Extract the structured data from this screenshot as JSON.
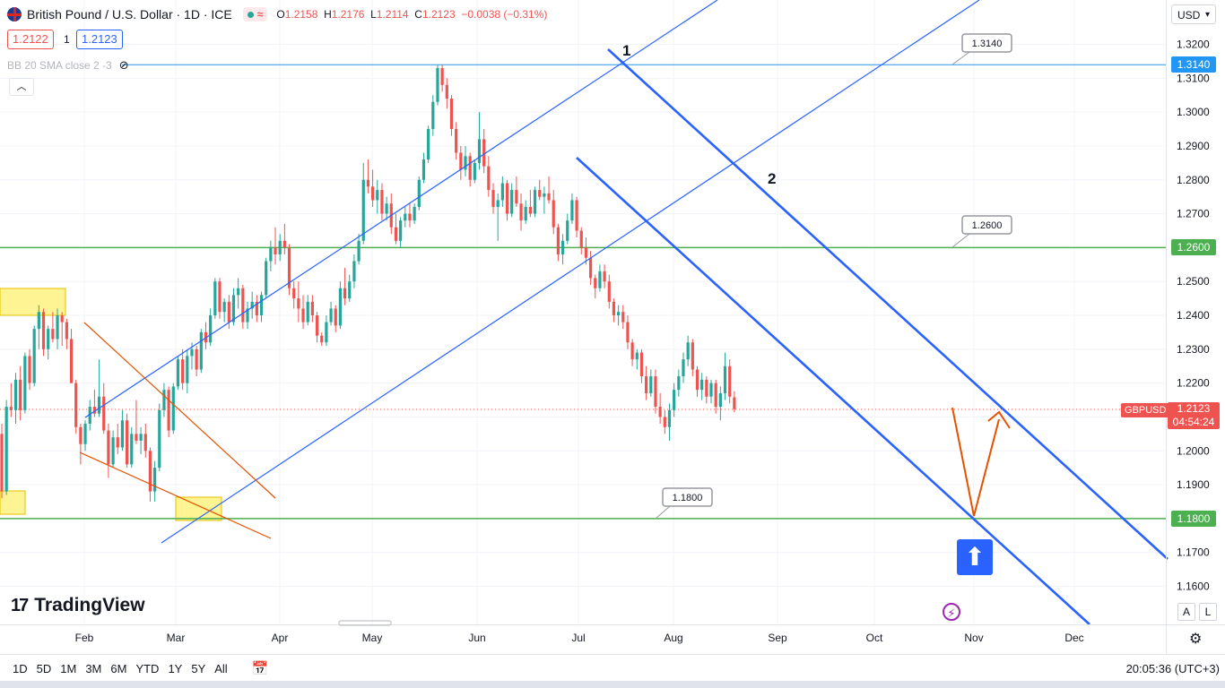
{
  "header": {
    "symbol_title": "British Pound / U.S. Dollar · 1D · ICE",
    "o_label": "O",
    "o_value": "1.2158",
    "h_label": "H",
    "h_value": "1.2176",
    "l_label": "L",
    "l_value": "1.2114",
    "c_label": "C",
    "c_value": "1.2123",
    "change": "−0.0038 (−0.31%)",
    "bid": "1.2122",
    "spread": "1",
    "ask": "1.2123",
    "indicator": "BB 20 SMA close 2 -3"
  },
  "currency": "USD",
  "logo": "TradingView",
  "ranges": [
    "1D",
    "5D",
    "1M",
    "3M",
    "6M",
    "YTD",
    "1Y",
    "5Y",
    "All"
  ],
  "clock": "20:05:36 (UTC+3)",
  "scale_buttons": [
    "A",
    "L"
  ],
  "colors": {
    "up": "#26a69a",
    "down": "#ef5350",
    "channel": "#2962ff",
    "level": "#4caf50",
    "wedge": "#e65100",
    "highlight": "#ffeb3b",
    "top_level": "#2196f3"
  },
  "chart_data": {
    "type": "candlestick",
    "instrument": "GBPUSD",
    "ylim": [
      1.155,
      1.327
    ],
    "y_ticks": [
      "1.3200",
      "1.3100",
      "1.3000",
      "1.2900",
      "1.2800",
      "1.2700",
      "1.2600",
      "1.2500",
      "1.2400",
      "1.2300",
      "1.2200",
      "1.2100",
      "1.2000",
      "1.1900",
      "1.1800",
      "1.1700",
      "1.1600"
    ],
    "x_ticks": [
      "Feb",
      "Mar",
      "Apr",
      "May",
      "Jun",
      "Jul",
      "Aug",
      "Sep",
      "Oct",
      "Nov",
      "Dec"
    ],
    "last_price": "1.2123",
    "countdown": "04:54:24",
    "levels": [
      {
        "value": 1.314,
        "label": "1.3140"
      },
      {
        "value": 1.26,
        "label": "1.2600"
      },
      {
        "value": 1.18,
        "label": "1.1800"
      }
    ],
    "wave_labels": [
      "1",
      "2"
    ],
    "candles": [
      [
        1.205,
        1.208,
        1.186,
        1.188
      ],
      [
        1.188,
        1.215,
        1.187,
        1.213
      ],
      [
        1.213,
        1.22,
        1.21,
        1.212
      ],
      [
        1.212,
        1.223,
        1.208,
        1.221
      ],
      [
        1.221,
        1.225,
        1.209,
        1.212
      ],
      [
        1.212,
        1.229,
        1.211,
        1.228
      ],
      [
        1.228,
        1.23,
        1.218,
        1.22
      ],
      [
        1.22,
        1.237,
        1.219,
        1.236
      ],
      [
        1.236,
        1.243,
        1.23,
        1.241
      ],
      [
        1.241,
        1.242,
        1.228,
        1.23
      ],
      [
        1.23,
        1.237,
        1.227,
        1.236
      ],
      [
        1.236,
        1.241,
        1.232,
        1.233
      ],
      [
        1.233,
        1.242,
        1.23,
        1.24
      ],
      [
        1.24,
        1.241,
        1.231,
        1.238
      ],
      [
        1.238,
        1.239,
        1.23,
        1.233
      ],
      [
        1.233,
        1.236,
        1.22,
        1.22
      ],
      [
        1.22,
        1.221,
        1.205,
        1.207
      ],
      [
        1.207,
        1.208,
        1.196,
        1.202
      ],
      [
        1.202,
        1.209,
        1.2,
        1.208
      ],
      [
        1.208,
        1.215,
        1.206,
        1.213
      ],
      [
        1.213,
        1.218,
        1.21,
        1.211
      ],
      [
        1.211,
        1.227,
        1.21,
        1.216
      ],
      [
        1.216,
        1.22,
        1.205,
        1.206
      ],
      [
        1.206,
        1.208,
        1.192,
        1.196
      ],
      [
        1.196,
        1.206,
        1.195,
        1.204
      ],
      [
        1.204,
        1.208,
        1.199,
        1.201
      ],
      [
        1.201,
        1.212,
        1.2,
        1.209
      ],
      [
        1.209,
        1.211,
        1.195,
        1.196
      ],
      [
        1.196,
        1.207,
        1.195,
        1.205
      ],
      [
        1.205,
        1.215,
        1.202,
        1.203
      ],
      [
        1.203,
        1.207,
        1.199,
        1.205
      ],
      [
        1.205,
        1.208,
        1.198,
        1.2
      ],
      [
        1.2,
        1.201,
        1.185,
        1.188
      ],
      [
        1.188,
        1.197,
        1.185,
        1.195
      ],
      [
        1.195,
        1.214,
        1.194,
        1.212
      ],
      [
        1.212,
        1.22,
        1.21,
        1.218
      ],
      [
        1.218,
        1.219,
        1.204,
        1.206
      ],
      [
        1.206,
        1.22,
        1.205,
        1.219
      ],
      [
        1.219,
        1.228,
        1.218,
        1.227
      ],
      [
        1.227,
        1.23,
        1.218,
        1.22
      ],
      [
        1.22,
        1.23,
        1.217,
        1.228
      ],
      [
        1.228,
        1.232,
        1.224,
        1.23
      ],
      [
        1.23,
        1.231,
        1.222,
        1.224
      ],
      [
        1.224,
        1.236,
        1.223,
        1.235
      ],
      [
        1.235,
        1.238,
        1.23,
        1.232
      ],
      [
        1.232,
        1.242,
        1.231,
        1.24
      ],
      [
        1.24,
        1.251,
        1.239,
        1.25
      ],
      [
        1.25,
        1.251,
        1.239,
        1.241
      ],
      [
        1.241,
        1.245,
        1.238,
        1.244
      ],
      [
        1.244,
        1.246,
        1.236,
        1.238
      ],
      [
        1.238,
        1.248,
        1.237,
        1.246
      ],
      [
        1.246,
        1.251,
        1.242,
        1.248
      ],
      [
        1.248,
        1.249,
        1.236,
        1.238
      ],
      [
        1.238,
        1.244,
        1.236,
        1.242
      ],
      [
        1.242,
        1.247,
        1.239,
        1.244
      ],
      [
        1.244,
        1.246,
        1.238,
        1.24
      ],
      [
        1.24,
        1.247,
        1.238,
        1.246
      ],
      [
        1.246,
        1.257,
        1.245,
        1.256
      ],
      [
        1.256,
        1.262,
        1.253,
        1.26
      ],
      [
        1.26,
        1.266,
        1.255,
        1.258
      ],
      [
        1.258,
        1.264,
        1.256,
        1.262
      ],
      [
        1.262,
        1.267,
        1.258,
        1.26
      ],
      [
        1.26,
        1.261,
        1.246,
        1.248
      ],
      [
        1.248,
        1.25,
        1.242,
        1.245
      ],
      [
        1.245,
        1.25,
        1.238,
        1.242
      ],
      [
        1.242,
        1.246,
        1.236,
        1.238
      ],
      [
        1.238,
        1.246,
        1.237,
        1.244
      ],
      [
        1.244,
        1.246,
        1.238,
        1.24
      ],
      [
        1.24,
        1.241,
        1.232,
        1.234
      ],
      [
        1.234,
        1.235,
        1.231,
        1.232
      ],
      [
        1.232,
        1.24,
        1.231,
        1.238
      ],
      [
        1.238,
        1.244,
        1.237,
        1.242
      ],
      [
        1.242,
        1.243,
        1.235,
        1.237
      ],
      [
        1.237,
        1.25,
        1.236,
        1.248
      ],
      [
        1.248,
        1.254,
        1.243,
        1.245
      ],
      [
        1.245,
        1.252,
        1.244,
        1.25
      ],
      [
        1.25,
        1.258,
        1.248,
        1.256
      ],
      [
        1.256,
        1.264,
        1.255,
        1.262
      ],
      [
        1.262,
        1.285,
        1.261,
        1.28
      ],
      [
        1.28,
        1.286,
        1.276,
        1.278
      ],
      [
        1.278,
        1.283,
        1.272,
        1.274
      ],
      [
        1.274,
        1.28,
        1.27,
        1.277
      ],
      [
        1.277,
        1.279,
        1.268,
        1.27
      ],
      [
        1.27,
        1.275,
        1.268,
        1.273
      ],
      [
        1.273,
        1.276,
        1.264,
        1.266
      ],
      [
        1.266,
        1.27,
        1.261,
        1.262
      ],
      [
        1.262,
        1.269,
        1.26,
        1.268
      ],
      [
        1.268,
        1.272,
        1.266,
        1.27
      ],
      [
        1.27,
        1.273,
        1.266,
        1.268
      ],
      [
        1.268,
        1.273,
        1.267,
        1.272
      ],
      [
        1.272,
        1.281,
        1.271,
        1.28
      ],
      [
        1.28,
        1.288,
        1.279,
        1.286
      ],
      [
        1.286,
        1.296,
        1.285,
        1.295
      ],
      [
        1.295,
        1.305,
        1.293,
        1.303
      ],
      [
        1.303,
        1.314,
        1.302,
        1.313
      ],
      [
        1.313,
        1.314,
        1.306,
        1.308
      ],
      [
        1.308,
        1.31,
        1.301,
        1.304
      ],
      [
        1.304,
        1.305,
        1.293,
        1.295
      ],
      [
        1.295,
        1.297,
        1.286,
        1.288
      ],
      [
        1.288,
        1.29,
        1.28,
        1.283
      ],
      [
        1.283,
        1.29,
        1.281,
        1.287
      ],
      [
        1.287,
        1.288,
        1.278,
        1.28
      ],
      [
        1.28,
        1.286,
        1.279,
        1.285
      ],
      [
        1.285,
        1.3,
        1.283,
        1.292
      ],
      [
        1.292,
        1.295,
        1.282,
        1.284
      ],
      [
        1.284,
        1.287,
        1.275,
        1.277
      ],
      [
        1.277,
        1.279,
        1.27,
        1.272
      ],
      [
        1.272,
        1.276,
        1.262,
        1.274
      ],
      [
        1.274,
        1.281,
        1.272,
        1.279
      ],
      [
        1.279,
        1.28,
        1.268,
        1.27
      ],
      [
        1.27,
        1.279,
        1.269,
        1.277
      ],
      [
        1.277,
        1.281,
        1.272,
        1.273
      ],
      [
        1.273,
        1.276,
        1.265,
        1.268
      ],
      [
        1.268,
        1.274,
        1.267,
        1.272
      ],
      [
        1.272,
        1.277,
        1.269,
        1.27
      ],
      [
        1.27,
        1.278,
        1.269,
        1.277
      ],
      [
        1.277,
        1.28,
        1.274,
        1.275
      ],
      [
        1.275,
        1.278,
        1.27,
        1.276
      ],
      [
        1.276,
        1.281,
        1.273,
        1.274
      ],
      [
        1.274,
        1.277,
        1.264,
        1.266
      ],
      [
        1.266,
        1.267,
        1.256,
        1.258
      ],
      [
        1.258,
        1.264,
        1.255,
        1.262
      ],
      [
        1.262,
        1.27,
        1.261,
        1.268
      ],
      [
        1.268,
        1.276,
        1.267,
        1.274
      ],
      [
        1.274,
        1.275,
        1.263,
        1.265
      ],
      [
        1.265,
        1.266,
        1.258,
        1.26
      ],
      [
        1.26,
        1.263,
        1.255,
        1.257
      ],
      [
        1.257,
        1.259,
        1.249,
        1.251
      ],
      [
        1.251,
        1.252,
        1.245,
        1.248
      ],
      [
        1.248,
        1.255,
        1.247,
        1.253
      ],
      [
        1.253,
        1.255,
        1.248,
        1.25
      ],
      [
        1.25,
        1.252,
        1.242,
        1.244
      ],
      [
        1.244,
        1.245,
        1.238,
        1.24
      ],
      [
        1.24,
        1.243,
        1.237,
        1.241
      ],
      [
        1.241,
        1.243,
        1.236,
        1.238
      ],
      [
        1.238,
        1.24,
        1.23,
        1.232
      ],
      [
        1.232,
        1.233,
        1.225,
        1.227
      ],
      [
        1.227,
        1.23,
        1.224,
        1.229
      ],
      [
        1.229,
        1.23,
        1.22,
        1.222
      ],
      [
        1.222,
        1.225,
        1.215,
        1.217
      ],
      [
        1.217,
        1.224,
        1.216,
        1.222
      ],
      [
        1.222,
        1.224,
        1.211,
        1.213
      ],
      [
        1.213,
        1.217,
        1.208,
        1.21
      ],
      [
        1.21,
        1.212,
        1.205,
        1.207
      ],
      [
        1.207,
        1.214,
        1.203,
        1.212
      ],
      [
        1.212,
        1.22,
        1.21,
        1.218
      ],
      [
        1.218,
        1.224,
        1.216,
        1.222
      ],
      [
        1.222,
        1.229,
        1.22,
        1.227
      ],
      [
        1.227,
        1.234,
        1.225,
        1.232
      ],
      [
        1.232,
        1.233,
        1.222,
        1.224
      ],
      [
        1.224,
        1.225,
        1.216,
        1.218
      ],
      [
        1.218,
        1.223,
        1.215,
        1.221
      ],
      [
        1.221,
        1.222,
        1.214,
        1.216
      ],
      [
        1.216,
        1.221,
        1.214,
        1.22
      ],
      [
        1.22,
        1.221,
        1.211,
        1.213
      ],
      [
        1.213,
        1.219,
        1.209,
        1.217
      ],
      [
        1.217,
        1.229,
        1.215,
        1.225
      ],
      [
        1.225,
        1.227,
        1.214,
        1.216
      ],
      [
        1.2158,
        1.2176,
        1.2114,
        1.2123
      ]
    ]
  }
}
